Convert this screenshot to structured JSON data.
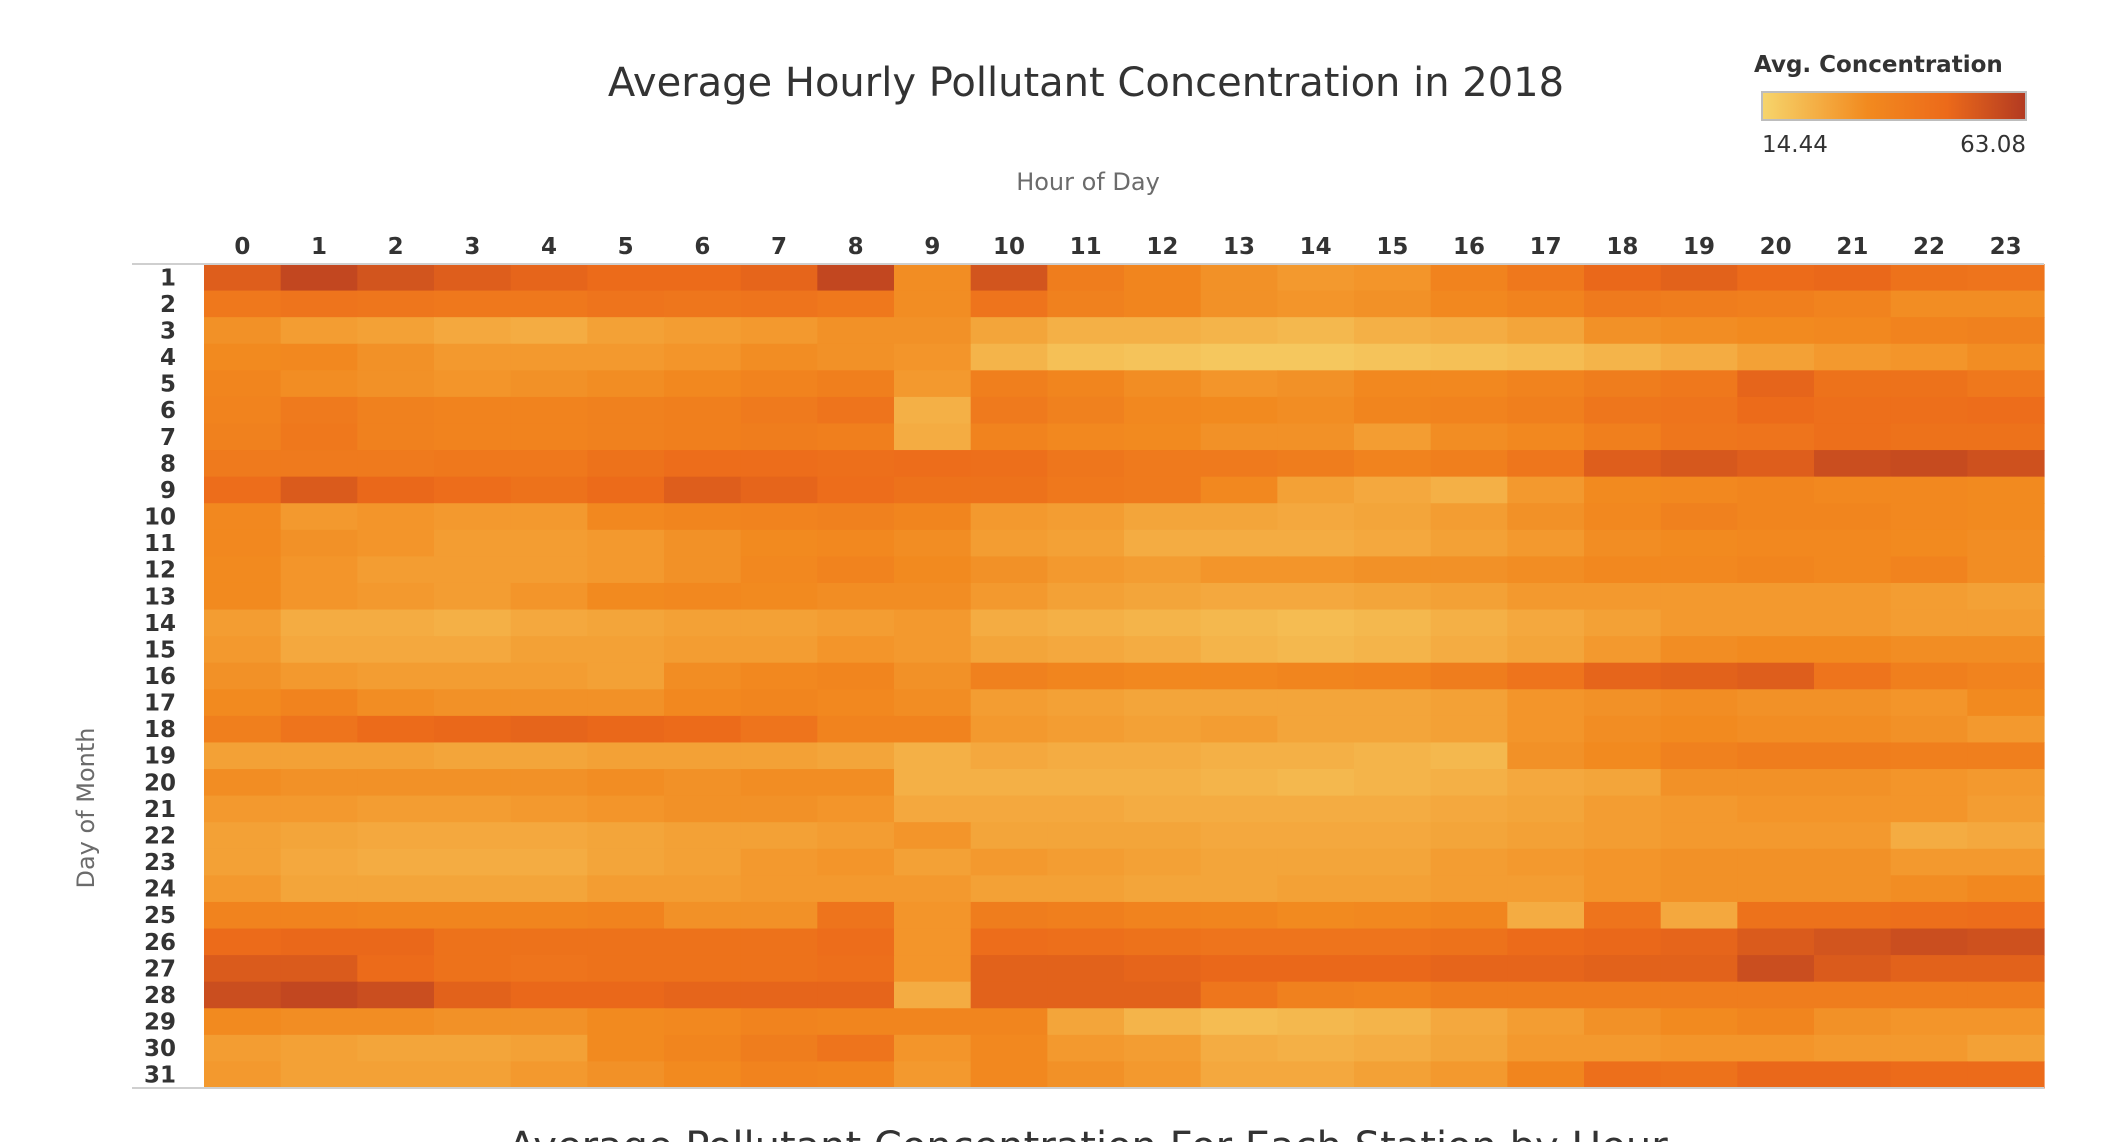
{
  "chart_data": {
    "type": "heatmap",
    "title": "Average Hourly Pollutant Concentration in 2018",
    "xlabel": "Hour of Day",
    "ylabel": "Day of Month",
    "x": [
      0,
      1,
      2,
      3,
      4,
      5,
      6,
      7,
      8,
      9,
      10,
      11,
      12,
      13,
      14,
      15,
      16,
      17,
      18,
      19,
      20,
      21,
      22,
      23
    ],
    "y": [
      1,
      2,
      3,
      4,
      5,
      6,
      7,
      8,
      9,
      10,
      11,
      12,
      13,
      14,
      15,
      16,
      17,
      18,
      19,
      20,
      21,
      22,
      23,
      24,
      25,
      26,
      27,
      28,
      29,
      30,
      31
    ],
    "legend": {
      "title": "Avg. Concentration",
      "min": 14.44,
      "max": 63.08,
      "min_label": "14.44",
      "max_label": "63.08",
      "placement": "top-right",
      "colors": [
        "#f6d56c",
        "#f28a1f",
        "#ec6a1a",
        "#b23a22"
      ]
    },
    "values": [
      [
        52,
        59,
        55,
        52,
        50,
        48,
        48,
        50,
        59,
        33,
        55,
        40,
        36,
        32,
        30,
        31,
        37,
        42,
        49,
        51,
        48,
        49,
        45,
        44
      ],
      [
        42,
        44,
        43,
        42,
        42,
        44,
        43,
        44,
        42,
        33,
        44,
        38,
        36,
        32,
        31,
        32,
        35,
        37,
        41,
        40,
        39,
        37,
        33,
        33
      ],
      [
        32,
        29,
        28,
        26,
        25,
        28,
        29,
        30,
        32,
        32,
        27,
        24,
        24,
        23,
        22,
        24,
        25,
        27,
        32,
        33,
        34,
        35,
        37,
        38
      ],
      [
        34,
        35,
        32,
        30,
        30,
        30,
        31,
        33,
        32,
        31,
        23,
        20,
        19,
        18,
        18,
        19,
        20,
        21,
        23,
        25,
        28,
        30,
        31,
        33
      ],
      [
        36,
        33,
        32,
        31,
        32,
        33,
        35,
        37,
        39,
        30,
        39,
        36,
        33,
        31,
        32,
        35,
        35,
        37,
        40,
        42,
        50,
        45,
        45,
        42
      ],
      [
        37,
        41,
        38,
        37,
        37,
        38,
        39,
        41,
        44,
        24,
        41,
        38,
        35,
        34,
        33,
        36,
        37,
        39,
        43,
        44,
        48,
        46,
        46,
        47
      ],
      [
        38,
        42,
        38,
        37,
        37,
        38,
        39,
        40,
        39,
        25,
        37,
        35,
        34,
        32,
        32,
        29,
        33,
        35,
        39,
        43,
        44,
        46,
        45,
        45
      ],
      [
        41,
        41,
        41,
        42,
        42,
        45,
        47,
        47,
        46,
        47,
        46,
        43,
        41,
        41,
        40,
        37,
        39,
        43,
        52,
        54,
        52,
        57,
        58,
        56
      ],
      [
        47,
        53,
        49,
        47,
        45,
        48,
        52,
        50,
        47,
        45,
        45,
        42,
        41,
        35,
        28,
        26,
        24,
        30,
        34,
        35,
        36,
        35,
        35,
        34
      ],
      [
        35,
        30,
        31,
        30,
        30,
        35,
        36,
        37,
        38,
        36,
        30,
        29,
        27,
        27,
        26,
        27,
        29,
        32,
        35,
        38,
        36,
        36,
        35,
        34
      ],
      [
        35,
        32,
        31,
        29,
        29,
        30,
        32,
        34,
        35,
        33,
        29,
        28,
        25,
        25,
        25,
        26,
        28,
        30,
        33,
        34,
        35,
        35,
        34,
        33
      ],
      [
        34,
        31,
        29,
        29,
        29,
        30,
        32,
        35,
        37,
        34,
        32,
        30,
        29,
        31,
        31,
        32,
        32,
        33,
        35,
        35,
        36,
        35,
        37,
        33
      ],
      [
        34,
        31,
        30,
        29,
        31,
        34,
        35,
        34,
        33,
        33,
        30,
        28,
        27,
        26,
        26,
        27,
        28,
        30,
        30,
        30,
        30,
        30,
        29,
        28
      ],
      [
        29,
        25,
        25,
        24,
        26,
        27,
        28,
        28,
        29,
        30,
        25,
        24,
        23,
        22,
        21,
        22,
        24,
        26,
        28,
        30,
        30,
        30,
        29,
        29
      ],
      [
        30,
        26,
        26,
        26,
        28,
        28,
        29,
        29,
        31,
        30,
        27,
        26,
        25,
        23,
        22,
        23,
        25,
        27,
        30,
        33,
        34,
        34,
        33,
        33
      ],
      [
        32,
        30,
        29,
        29,
        29,
        28,
        33,
        35,
        36,
        32,
        38,
        36,
        35,
        35,
        36,
        37,
        40,
        44,
        50,
        51,
        52,
        44,
        39,
        37
      ],
      [
        34,
        37,
        33,
        32,
        32,
        32,
        35,
        36,
        35,
        33,
        29,
        28,
        27,
        27,
        27,
        27,
        28,
        31,
        32,
        33,
        32,
        32,
        31,
        34
      ],
      [
        39,
        44,
        48,
        49,
        50,
        49,
        48,
        44,
        37,
        37,
        30,
        29,
        28,
        29,
        27,
        27,
        28,
        31,
        33,
        34,
        33,
        33,
        32,
        30
      ],
      [
        28,
        28,
        28,
        27,
        27,
        28,
        28,
        28,
        27,
        24,
        26,
        25,
        25,
        24,
        24,
        23,
        22,
        32,
        34,
        38,
        40,
        40,
        39,
        39
      ],
      [
        33,
        32,
        32,
        32,
        32,
        33,
        32,
        33,
        33,
        24,
        24,
        24,
        24,
        23,
        22,
        23,
        24,
        26,
        27,
        32,
        32,
        32,
        31,
        30
      ],
      [
        30,
        30,
        29,
        29,
        30,
        31,
        32,
        32,
        31,
        26,
        26,
        26,
        25,
        25,
        25,
        25,
        26,
        27,
        29,
        30,
        31,
        31,
        31,
        29
      ],
      [
        28,
        27,
        26,
        26,
        26,
        27,
        28,
        28,
        29,
        31,
        27,
        27,
        27,
        26,
        26,
        26,
        27,
        28,
        29,
        30,
        30,
        30,
        25,
        26
      ],
      [
        28,
        26,
        25,
        25,
        25,
        27,
        28,
        30,
        31,
        28,
        30,
        29,
        28,
        27,
        27,
        27,
        29,
        30,
        31,
        32,
        32,
        32,
        30,
        30
      ],
      [
        30,
        27,
        27,
        27,
        27,
        29,
        29,
        30,
        30,
        30,
        28,
        28,
        27,
        27,
        28,
        28,
        29,
        29,
        31,
        32,
        32,
        32,
        33,
        35
      ],
      [
        37,
        37,
        36,
        36,
        36,
        37,
        32,
        32,
        44,
        31,
        40,
        39,
        37,
        36,
        34,
        35,
        36,
        25,
        44,
        26,
        45,
        45,
        46,
        47
      ],
      [
        48,
        49,
        49,
        45,
        45,
        45,
        45,
        45,
        47,
        31,
        47,
        46,
        45,
        44,
        44,
        44,
        45,
        48,
        49,
        50,
        53,
        55,
        57,
        56
      ],
      [
        53,
        53,
        48,
        45,
        44,
        45,
        45,
        45,
        46,
        31,
        51,
        51,
        50,
        49,
        49,
        49,
        50,
        50,
        51,
        51,
        57,
        53,
        51,
        51
      ],
      [
        57,
        59,
        57,
        51,
        49,
        49,
        50,
        50,
        50,
        25,
        51,
        51,
        51,
        43,
        38,
        37,
        40,
        40,
        40,
        40,
        40,
        40,
        40,
        40
      ],
      [
        34,
        33,
        33,
        32,
        32,
        34,
        35,
        37,
        36,
        36,
        36,
        27,
        23,
        21,
        22,
        23,
        26,
        29,
        32,
        34,
        36,
        32,
        31,
        31
      ],
      [
        29,
        28,
        27,
        27,
        28,
        34,
        36,
        40,
        44,
        31,
        35,
        30,
        29,
        25,
        24,
        25,
        27,
        30,
        30,
        31,
        31,
        30,
        30,
        28
      ],
      [
        30,
        28,
        28,
        28,
        30,
        32,
        34,
        37,
        36,
        30,
        35,
        32,
        30,
        26,
        26,
        28,
        30,
        36,
        46,
        45,
        49,
        49,
        48,
        48
      ]
    ]
  },
  "lower_chart": {
    "title": "Average Pollutant Concentration For Each Station by Hour"
  }
}
